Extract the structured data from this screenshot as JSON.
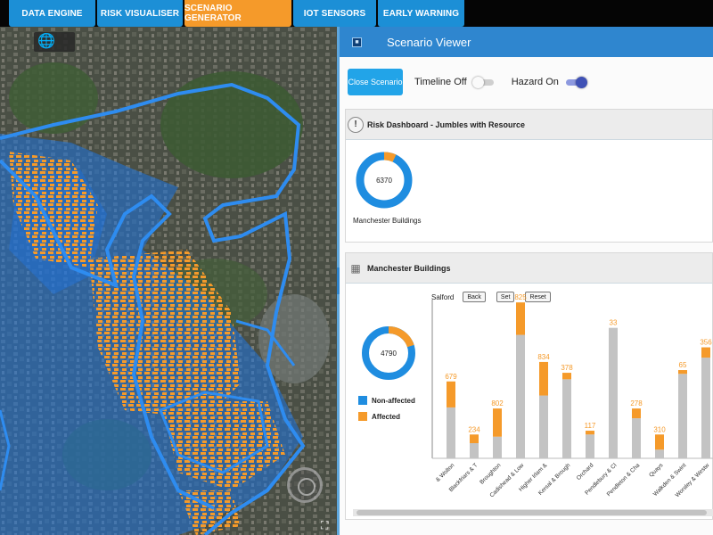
{
  "nav": {
    "tabs": [
      {
        "label": "DATA ENGINE",
        "active": false
      },
      {
        "label": "RISK VISUALISER",
        "active": false
      },
      {
        "label": "SCENARIO GENERATOR",
        "active": true
      },
      {
        "label": "IOT SENSORS",
        "active": false
      },
      {
        "label": "EARLY WARNING",
        "active": false
      }
    ]
  },
  "map": {
    "globe_icon": "globe-icon",
    "flood_color": "#1e74e0",
    "building_color": "#f59a2a"
  },
  "panel": {
    "title": "Scenario Viewer",
    "close_button": "Close Scenario",
    "timeline_label": "Timeline Off",
    "timeline_on": false,
    "hazard_label": "Hazard On",
    "hazard_on": true
  },
  "risk_dashboard": {
    "title": "Risk Dashboard - Jumbles with Resource",
    "donut_total": "6370",
    "donut_caption": "Manchester Buildings",
    "affected_fraction": 0.07
  },
  "buildings_card": {
    "title": "Manchester Buildings",
    "filter_label": "Salford",
    "back_button": "Back",
    "set_button": "Set",
    "reset_button": "Reset",
    "donut_total": "4790",
    "affected_fraction": 0.2,
    "legend": [
      {
        "label": "Non-affected",
        "color": "#1f8de0"
      },
      {
        "label": "Affected",
        "color": "#f59a2a"
      }
    ]
  },
  "chart_data": {
    "type": "bar",
    "stacked": true,
    "categories": [
      "& Wolton",
      "Blackfriars & T",
      "Broughton",
      "Cadishead & Low",
      "Higher Irlam &",
      "Kersal & Brough",
      "Orchard",
      "Pendlebury & Cl",
      "Pendleton & Cha",
      "Quays",
      "Walkden & Swint",
      "Worsley & Westw"
    ],
    "series": [
      {
        "name": "Non-affected",
        "values": [
          470,
          140,
          200,
          1140,
          580,
          730,
          220,
          1205,
          370,
          80,
          780,
          930
        ],
        "color": "#c3c3c3"
      },
      {
        "name": "Affected",
        "values": [
          240,
          80,
          260,
          300,
          310,
          60,
          35,
          0,
          90,
          140,
          35,
          95
        ],
        "color": "#f59a2a"
      }
    ],
    "data_labels": [
      "679",
      "234",
      "802",
      "825",
      "834",
      "378",
      "117",
      "33",
      "278",
      "310",
      "65",
      "356"
    ],
    "ylim": [
      0,
      1400
    ]
  }
}
